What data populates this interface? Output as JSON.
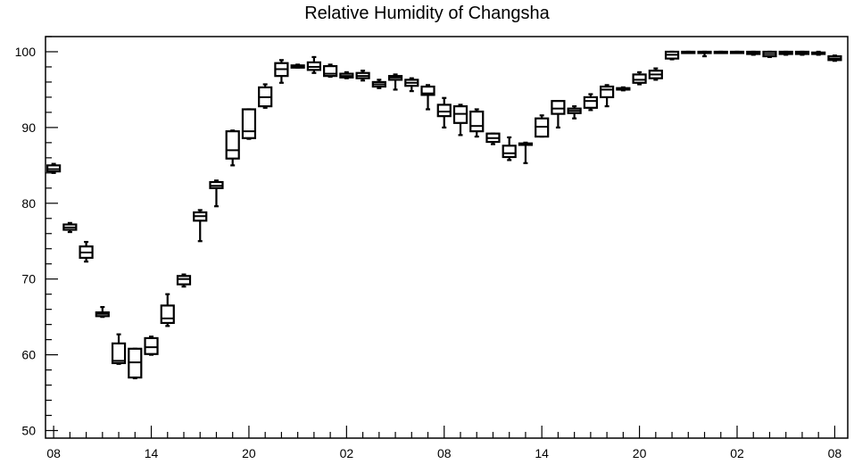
{
  "chart_data": {
    "type": "box",
    "title": "Relative Humidity of Changsha",
    "xlabel": "",
    "ylabel": "",
    "ylim": [
      49,
      102
    ],
    "y_ticks": [
      50,
      60,
      70,
      80,
      90,
      100
    ],
    "x_ticks": [
      "08",
      "14",
      "20",
      "02",
      "08",
      "14",
      "20",
      "02",
      "08"
    ],
    "x_tick_hours": [
      0,
      6,
      12,
      18,
      24,
      30,
      36,
      42,
      48
    ],
    "xlim_hours": [
      -0.5,
      48.8
    ],
    "grid": false,
    "boxes": [
      {
        "hour": 0,
        "min": 84.0,
        "q1": 84.2,
        "median": 84.5,
        "q3": 85.0,
        "max": 85.2
      },
      {
        "hour": 1,
        "min": 76.2,
        "q1": 76.5,
        "median": 76.8,
        "q3": 77.2,
        "max": 77.4
      },
      {
        "hour": 2,
        "min": 72.3,
        "q1": 72.8,
        "median": 73.5,
        "q3": 74.3,
        "max": 74.9
      },
      {
        "hour": 3,
        "min": 65.0,
        "q1": 65.1,
        "median": 65.4,
        "q3": 65.6,
        "max": 66.3
      },
      {
        "hour": 4,
        "min": 58.8,
        "q1": 58.9,
        "median": 59.2,
        "q3": 61.5,
        "max": 62.7
      },
      {
        "hour": 5,
        "min": 56.9,
        "q1": 57.0,
        "median": 59.0,
        "q3": 60.8,
        "max": 60.8
      },
      {
        "hour": 6,
        "min": 60.0,
        "q1": 60.1,
        "median": 61.0,
        "q3": 62.2,
        "max": 62.4
      },
      {
        "hour": 7,
        "min": 63.8,
        "q1": 64.2,
        "median": 64.8,
        "q3": 66.5,
        "max": 68.0
      },
      {
        "hour": 8,
        "min": 69.0,
        "q1": 69.3,
        "median": 70.0,
        "q3": 70.4,
        "max": 70.6
      },
      {
        "hour": 9,
        "min": 75.0,
        "q1": 77.7,
        "median": 78.3,
        "q3": 78.8,
        "max": 79.1
      },
      {
        "hour": 10,
        "min": 79.6,
        "q1": 82.0,
        "median": 82.3,
        "q3": 82.8,
        "max": 83.0
      },
      {
        "hour": 11,
        "min": 85.0,
        "q1": 85.9,
        "median": 87.0,
        "q3": 89.5,
        "max": 89.6
      },
      {
        "hour": 12,
        "min": 88.5,
        "q1": 88.6,
        "median": 89.5,
        "q3": 92.4,
        "max": 92.4
      },
      {
        "hour": 13,
        "min": 92.6,
        "q1": 92.8,
        "median": 94.0,
        "q3": 95.3,
        "max": 95.7
      },
      {
        "hour": 14,
        "min": 95.9,
        "q1": 96.8,
        "median": 97.7,
        "q3": 98.5,
        "max": 98.9
      },
      {
        "hour": 15,
        "min": 97.9,
        "q1": 97.9,
        "median": 98.0,
        "q3": 98.2,
        "max": 98.3
      },
      {
        "hour": 16,
        "min": 97.2,
        "q1": 97.6,
        "median": 98.0,
        "q3": 98.6,
        "max": 99.3
      },
      {
        "hour": 17,
        "min": 96.7,
        "q1": 96.8,
        "median": 97.1,
        "q3": 98.1,
        "max": 98.3
      },
      {
        "hour": 18,
        "min": 96.5,
        "q1": 96.6,
        "median": 96.8,
        "q3": 97.1,
        "max": 97.3
      },
      {
        "hour": 19,
        "min": 96.2,
        "q1": 96.5,
        "median": 96.8,
        "q3": 97.2,
        "max": 97.5
      },
      {
        "hour": 20,
        "min": 95.2,
        "q1": 95.4,
        "median": 95.7,
        "q3": 96.0,
        "max": 96.3
      },
      {
        "hour": 21,
        "min": 95.0,
        "q1": 96.3,
        "median": 96.6,
        "q3": 96.8,
        "max": 97.0
      },
      {
        "hour": 22,
        "min": 94.8,
        "q1": 95.5,
        "median": 95.9,
        "q3": 96.3,
        "max": 96.5
      },
      {
        "hour": 23,
        "min": 92.4,
        "q1": 94.3,
        "median": 94.5,
        "q3": 95.4,
        "max": 95.6
      },
      {
        "hour": 24,
        "min": 90.0,
        "q1": 91.5,
        "median": 92.1,
        "q3": 93.0,
        "max": 93.9
      },
      {
        "hour": 25,
        "min": 89.0,
        "q1": 90.6,
        "median": 91.8,
        "q3": 92.8,
        "max": 93.0
      },
      {
        "hour": 26,
        "min": 88.8,
        "q1": 89.5,
        "median": 90.2,
        "q3": 92.1,
        "max": 92.4
      },
      {
        "hour": 27,
        "min": 87.8,
        "q1": 88.1,
        "median": 88.6,
        "q3": 89.2,
        "max": 89.2
      },
      {
        "hour": 28,
        "min": 85.7,
        "q1": 86.1,
        "median": 86.6,
        "q3": 87.6,
        "max": 88.7
      },
      {
        "hour": 29,
        "min": 85.3,
        "q1": 87.7,
        "median": 87.8,
        "q3": 87.9,
        "max": 88.0
      },
      {
        "hour": 30,
        "min": 88.8,
        "q1": 88.8,
        "median": 90.1,
        "q3": 91.2,
        "max": 91.6
      },
      {
        "hour": 31,
        "min": 90.0,
        "q1": 91.8,
        "median": 92.5,
        "q3": 93.5,
        "max": 93.5
      },
      {
        "hour": 32,
        "min": 91.2,
        "q1": 91.9,
        "median": 92.2,
        "q3": 92.5,
        "max": 92.8
      },
      {
        "hour": 33,
        "min": 92.3,
        "q1": 92.6,
        "median": 93.5,
        "q3": 94.0,
        "max": 94.4
      },
      {
        "hour": 34,
        "min": 92.8,
        "q1": 94.0,
        "median": 95.0,
        "q3": 95.4,
        "max": 95.6
      },
      {
        "hour": 35,
        "min": 94.9,
        "q1": 95.0,
        "median": 95.1,
        "q3": 95.2,
        "max": 95.3
      },
      {
        "hour": 36,
        "min": 95.7,
        "q1": 95.9,
        "median": 96.3,
        "q3": 97.0,
        "max": 97.3
      },
      {
        "hour": 37,
        "min": 96.3,
        "q1": 96.5,
        "median": 97.0,
        "q3": 97.5,
        "max": 97.8
      },
      {
        "hour": 38,
        "min": 99.0,
        "q1": 99.1,
        "median": 99.6,
        "q3": 100.0,
        "max": 100.0
      },
      {
        "hour": 39,
        "min": 99.9,
        "q1": 99.9,
        "median": 100.0,
        "q3": 100.0,
        "max": 100.0
      },
      {
        "hour": 40,
        "min": 99.4,
        "q1": 99.9,
        "median": 100.0,
        "q3": 100.0,
        "max": 100.0
      },
      {
        "hour": 41,
        "min": 99.9,
        "q1": 99.9,
        "median": 100.0,
        "q3": 100.0,
        "max": 100.0
      },
      {
        "hour": 42,
        "min": 99.9,
        "q1": 99.9,
        "median": 100.0,
        "q3": 100.0,
        "max": 100.0
      },
      {
        "hour": 43,
        "min": 99.6,
        "q1": 99.7,
        "median": 99.8,
        "q3": 100.0,
        "max": 100.0
      },
      {
        "hour": 44,
        "min": 99.3,
        "q1": 99.4,
        "median": 99.7,
        "q3": 100.0,
        "max": 100.0
      },
      {
        "hour": 45,
        "min": 99.6,
        "q1": 99.7,
        "median": 99.9,
        "q3": 100.0,
        "max": 100.0
      },
      {
        "hour": 46,
        "min": 99.6,
        "q1": 99.7,
        "median": 99.9,
        "q3": 100.0,
        "max": 100.0
      },
      {
        "hour": 47,
        "min": 99.6,
        "q1": 99.7,
        "median": 99.8,
        "q3": 99.9,
        "max": 100.0
      },
      {
        "hour": 48,
        "min": 98.8,
        "q1": 98.9,
        "median": 99.1,
        "q3": 99.4,
        "max": 99.5
      }
    ]
  },
  "colors": {
    "box": "#000000",
    "background": "#ffffff",
    "axis": "#000000"
  }
}
